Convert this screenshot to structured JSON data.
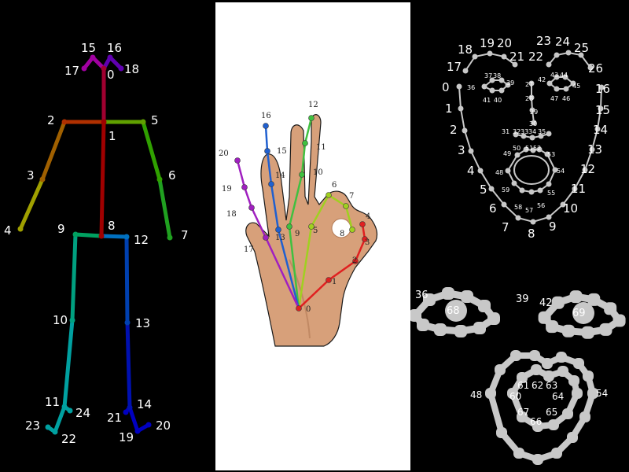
{
  "panels": {
    "body": {
      "keypoint_color_bg": "#000000",
      "label_color": "#ffffff",
      "keypoints": [
        {
          "id": "0",
          "label": "0"
        },
        {
          "id": "1",
          "label": "1"
        },
        {
          "id": "2",
          "label": "2"
        },
        {
          "id": "3",
          "label": "3"
        },
        {
          "id": "4",
          "label": "4"
        },
        {
          "id": "5",
          "label": "5"
        },
        {
          "id": "6",
          "label": "6"
        },
        {
          "id": "7",
          "label": "7"
        },
        {
          "id": "8",
          "label": "8"
        },
        {
          "id": "9",
          "label": "9"
        },
        {
          "id": "10",
          "label": "10"
        },
        {
          "id": "11",
          "label": "11"
        },
        {
          "id": "12",
          "label": "12"
        },
        {
          "id": "13",
          "label": "13"
        },
        {
          "id": "14",
          "label": "14"
        },
        {
          "id": "15",
          "label": "15"
        },
        {
          "id": "16",
          "label": "16"
        },
        {
          "id": "17",
          "label": "17"
        },
        {
          "id": "18",
          "label": "18"
        },
        {
          "id": "19",
          "label": "19"
        },
        {
          "id": "20",
          "label": "20"
        },
        {
          "id": "21",
          "label": "21"
        },
        {
          "id": "22",
          "label": "22"
        },
        {
          "id": "23",
          "label": "23"
        },
        {
          "id": "24",
          "label": "24"
        }
      ],
      "limb_colors": {
        "neck": "#a00030",
        "r_shoulder": "#b03000",
        "r_upper_arm": "#a06000",
        "r_forearm": "#a0a000",
        "l_shoulder": "#60a000",
        "l_upper_arm": "#30a000",
        "l_forearm": "#20a020",
        "spine": "#a00000",
        "r_hip": "#00a060",
        "r_thigh": "#00a080",
        "r_shin": "#00a0a0",
        "l_hip": "#0070c0",
        "l_thigh": "#0040b0",
        "l_shin": "#0010b0",
        "head_r": "#a000a0",
        "head_l": "#6000b0"
      }
    },
    "hand": {
      "keypoints": [
        {
          "id": "0",
          "label": "0"
        },
        {
          "id": "1",
          "label": "1"
        },
        {
          "id": "2",
          "label": "2"
        },
        {
          "id": "3",
          "label": "3"
        },
        {
          "id": "4",
          "label": "4"
        },
        {
          "id": "5",
          "label": "5"
        },
        {
          "id": "6",
          "label": "6"
        },
        {
          "id": "7",
          "label": "7"
        },
        {
          "id": "8",
          "label": "8"
        },
        {
          "id": "9",
          "label": "9"
        },
        {
          "id": "10",
          "label": "10"
        },
        {
          "id": "11",
          "label": "11"
        },
        {
          "id": "12",
          "label": "12"
        },
        {
          "id": "13",
          "label": "13"
        },
        {
          "id": "14",
          "label": "14"
        },
        {
          "id": "15",
          "label": "15"
        },
        {
          "id": "16",
          "label": "16"
        },
        {
          "id": "17",
          "label": "17"
        },
        {
          "id": "18",
          "label": "18"
        },
        {
          "id": "19",
          "label": "19"
        },
        {
          "id": "20",
          "label": "20"
        }
      ],
      "finger_colors": {
        "thumb": "#e02020",
        "index": "#a0d020",
        "middle": "#40c040",
        "ring": "#2060d0",
        "pinky": "#a020c0"
      }
    },
    "face": {
      "line_color": "#c8c8c8",
      "label_color": "#ffffff",
      "labels": [
        "0",
        "1",
        "2",
        "3",
        "4",
        "5",
        "6",
        "7",
        "8",
        "9",
        "10",
        "11",
        "12",
        "13",
        "14",
        "15",
        "16",
        "17",
        "18",
        "19",
        "20",
        "21",
        "22",
        "23",
        "24",
        "25",
        "26",
        "27",
        "28",
        "29",
        "30",
        "31",
        "32",
        "33",
        "34",
        "35",
        "36",
        "37",
        "38",
        "39",
        "40",
        "41",
        "42",
        "43",
        "44",
        "45",
        "46",
        "47",
        "48",
        "49",
        "50",
        "51",
        "52",
        "53",
        "54",
        "55",
        "56",
        "57",
        "58",
        "59"
      ],
      "eyes_zoom": {
        "left_labels": [
          "36",
          "68",
          "39"
        ],
        "right_labels": [
          "42",
          "69"
        ]
      },
      "mouth_zoom": {
        "labels": [
          "48",
          "54",
          "60",
          "61",
          "62",
          "63",
          "64",
          "65",
          "66",
          "67"
        ]
      }
    }
  }
}
